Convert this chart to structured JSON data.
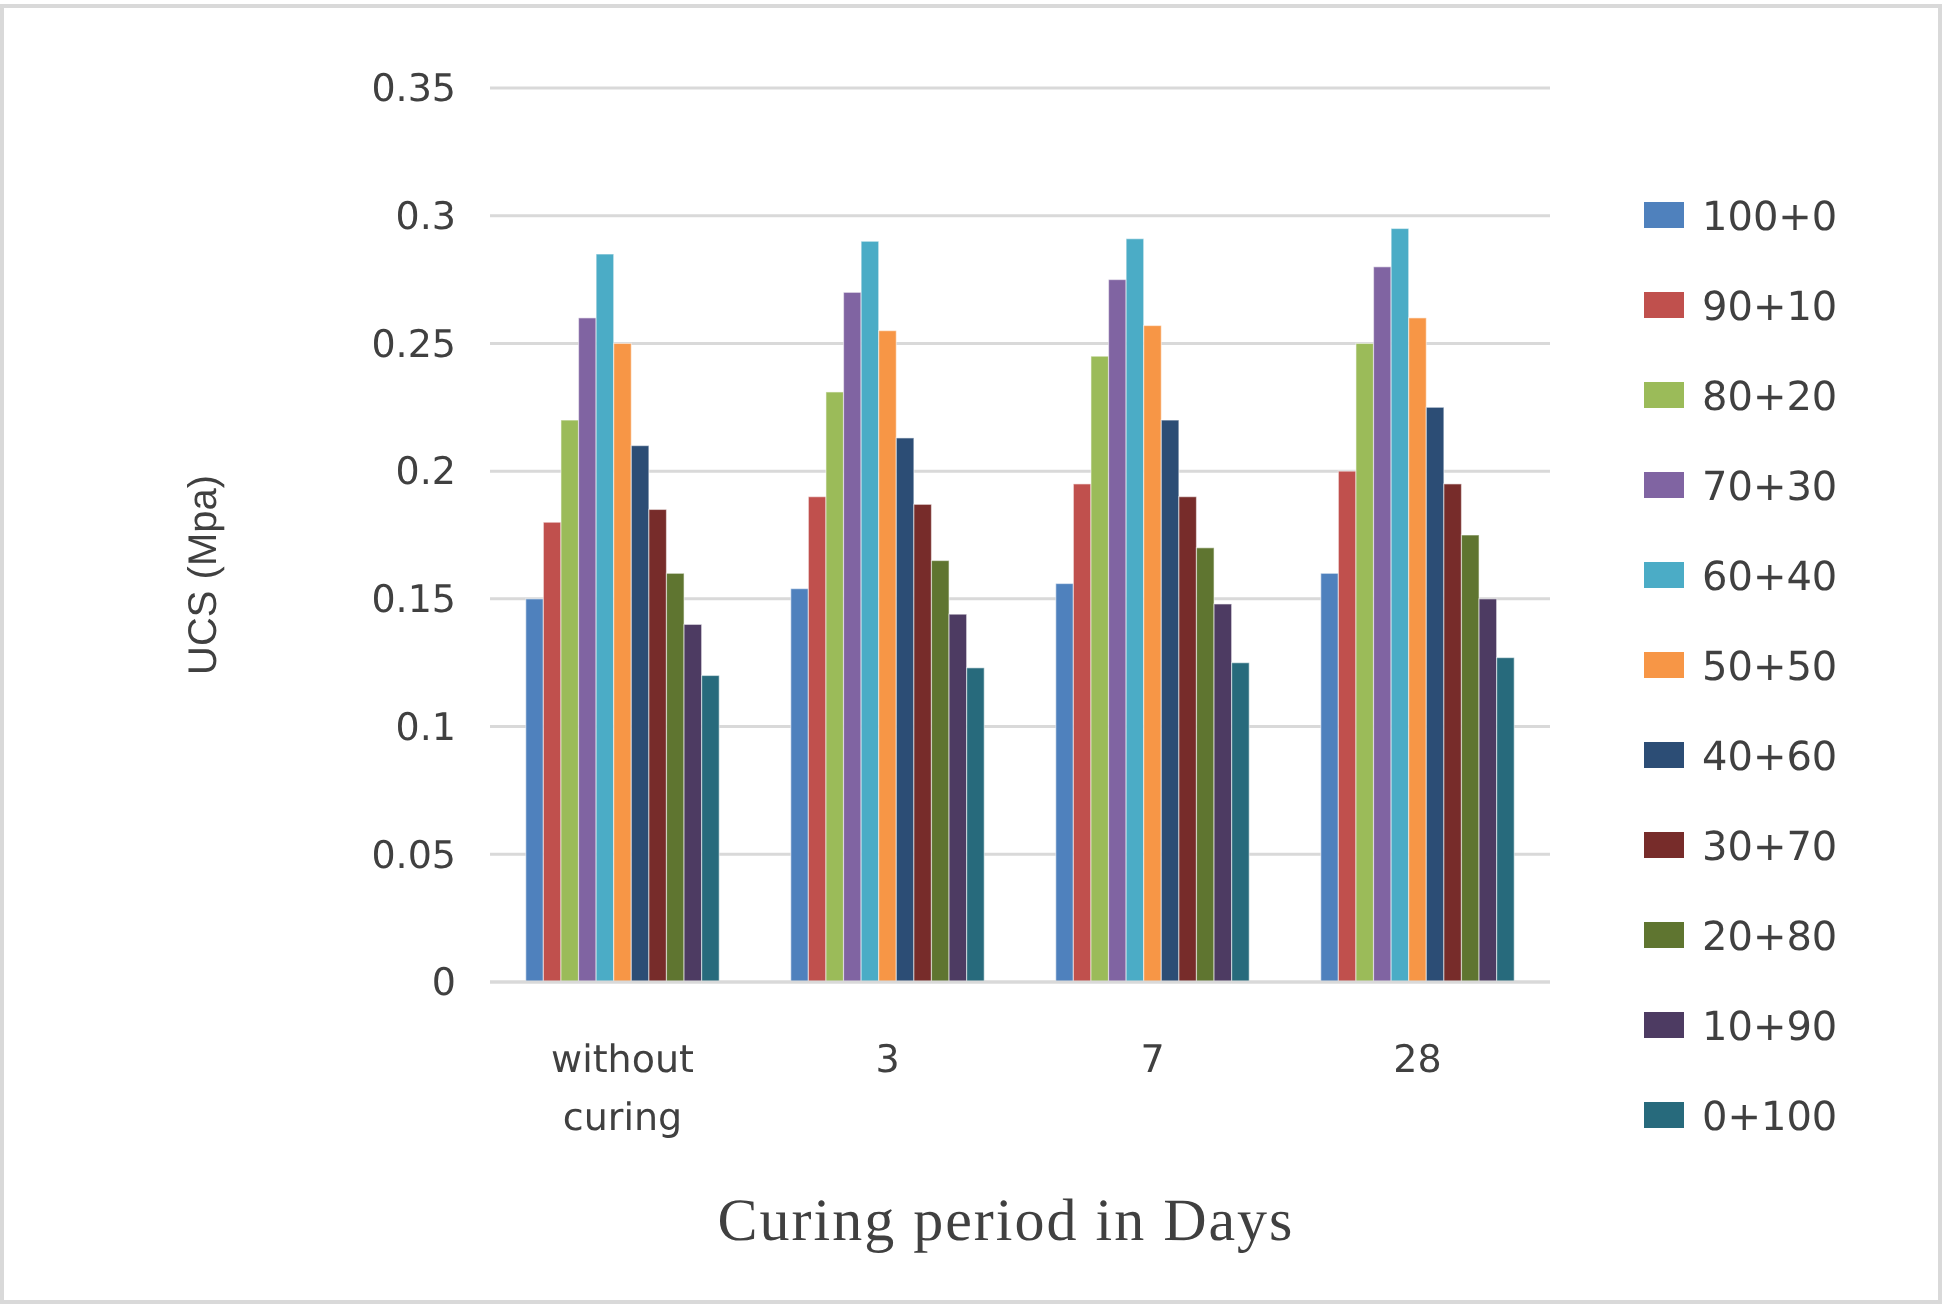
{
  "chart_data": {
    "type": "bar",
    "xlabel": "Curing period in Days",
    "ylabel": "UCS (Mpa)",
    "categories": [
      "without curing",
      "3",
      "7",
      "28"
    ],
    "series": [
      {
        "name": "100+0",
        "color": "#4f81bd",
        "values": [
          0.15,
          0.154,
          0.156,
          0.16
        ]
      },
      {
        "name": "90+10",
        "color": "#c0504d",
        "values": [
          0.18,
          0.19,
          0.195,
          0.2
        ]
      },
      {
        "name": "80+20",
        "color": "#9bbb59",
        "values": [
          0.22,
          0.231,
          0.245,
          0.25
        ]
      },
      {
        "name": "70+30",
        "color": "#8064a2",
        "values": [
          0.26,
          0.27,
          0.275,
          0.28
        ]
      },
      {
        "name": "60+40",
        "color": "#4bacc6",
        "values": [
          0.285,
          0.29,
          0.291,
          0.295
        ]
      },
      {
        "name": "50+50",
        "color": "#f79646",
        "values": [
          0.25,
          0.255,
          0.257,
          0.26
        ]
      },
      {
        "name": "40+60",
        "color": "#2c4d75",
        "values": [
          0.21,
          0.213,
          0.22,
          0.225
        ]
      },
      {
        "name": "30+70",
        "color": "#772c2a",
        "values": [
          0.185,
          0.187,
          0.19,
          0.195
        ]
      },
      {
        "name": "20+80",
        "color": "#5f7530",
        "values": [
          0.16,
          0.165,
          0.17,
          0.175
        ]
      },
      {
        "name": "10+90",
        "color": "#4d3b62",
        "values": [
          0.14,
          0.144,
          0.148,
          0.15
        ]
      },
      {
        "name": "0+100",
        "color": "#276a7c",
        "values": [
          0.12,
          0.123,
          0.125,
          0.127
        ]
      }
    ],
    "ylim": [
      0,
      0.35
    ],
    "yticks": [
      0,
      0.05,
      0.1,
      0.15,
      0.2,
      0.25,
      0.3,
      0.35
    ],
    "grid": "y",
    "legend": "right"
  }
}
